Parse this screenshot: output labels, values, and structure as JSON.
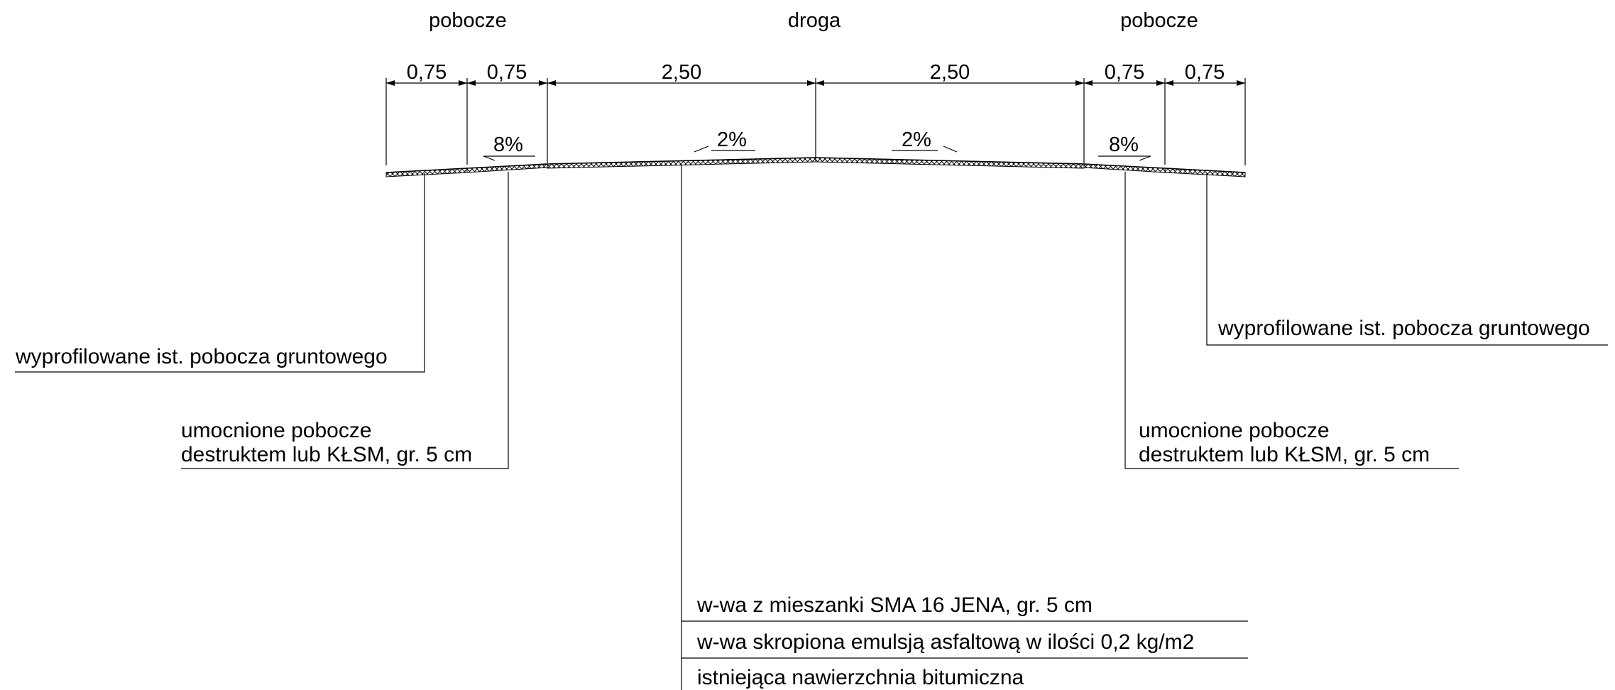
{
  "headers": {
    "left": "pobocze",
    "center": "droga",
    "right": "pobocze"
  },
  "dimensions": [
    "0,75",
    "0,75",
    "2,50",
    "2,50",
    "0,75",
    "0,75"
  ],
  "slopes": {
    "left_shoulder": "8%",
    "left_lane": "2%",
    "right_lane": "2%",
    "right_shoulder": "8%"
  },
  "labels": {
    "left_ground": "wyprofilowane ist. pobocza gruntowego",
    "right_ground": "wyprofilowane ist. pobocza gruntowego",
    "left_reinforced_line1": "umocnione pobocze",
    "left_reinforced_line2": "destruktem lub KŁSM, gr. 5 cm",
    "right_reinforced_line1": "umocnione pobocze",
    "right_reinforced_line2": "destruktem lub KŁSM, gr. 5 cm",
    "layer1": "w-wa z mieszanki SMA 16 JENA, gr. 5 cm",
    "layer2": "w-wa skropiona emulsją asfaltową w ilości 0,2 kg/m2",
    "layer3": "istniejąca nawierzchnia bitumiczna"
  },
  "colors": {
    "line": "#000000",
    "background": "#ffffff"
  }
}
